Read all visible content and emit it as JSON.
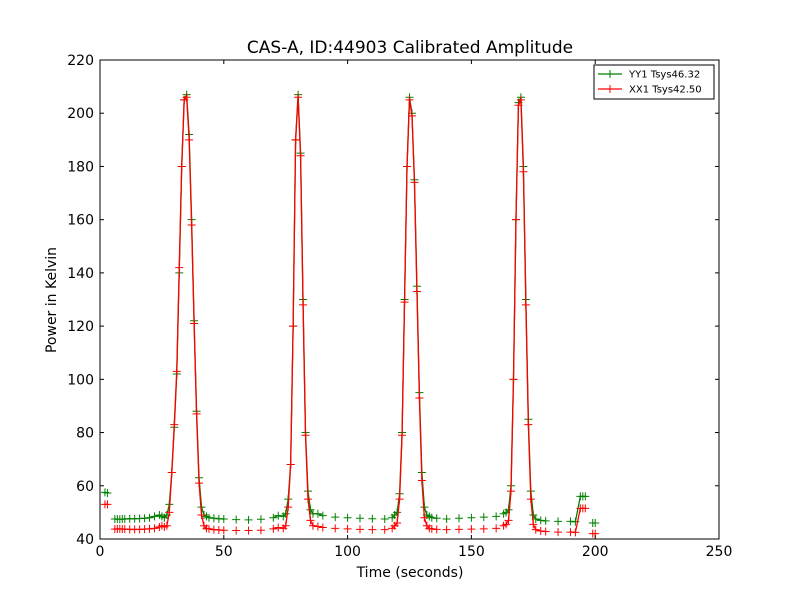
{
  "chart_data": {
    "type": "line",
    "title": "CAS-A, ID:44903 Calibrated Amplitude",
    "xlabel": "Time (seconds)",
    "ylabel": "Power in Kelvin",
    "xlim": [
      0,
      250
    ],
    "ylim": [
      40,
      220
    ],
    "x_ticks": [
      "0",
      "50",
      "100",
      "150",
      "200",
      "250"
    ],
    "y_ticks": [
      "40",
      "60",
      "80",
      "100",
      "120",
      "140",
      "160",
      "180",
      "200",
      "220"
    ],
    "grid": false,
    "legend_position": "top-right",
    "series": [
      {
        "name": "YY1 Tsys46.32",
        "color": "#008000",
        "marker": "plus",
        "points": [
          [
            2,
            57.5
          ],
          [
            3,
            57.3
          ],
          [
            6,
            47.5
          ],
          [
            7,
            47.5
          ],
          [
            8,
            47.4
          ],
          [
            9,
            47.5
          ],
          [
            10,
            47.5
          ],
          [
            12,
            47.6
          ],
          [
            14,
            47.6
          ],
          [
            16,
            47.7
          ],
          [
            18,
            47.8
          ],
          [
            20,
            48.0
          ],
          [
            22,
            48.5
          ],
          [
            24,
            49.0
          ],
          [
            25,
            48.5
          ],
          [
            26,
            48.0
          ],
          [
            27,
            49.0
          ],
          [
            28,
            53.0
          ],
          [
            29,
            65.0
          ],
          [
            30,
            82.0
          ],
          [
            31,
            102.0
          ],
          [
            32,
            140.0
          ],
          [
            33,
            180.0
          ],
          [
            34,
            205.0
          ],
          [
            35,
            207.0
          ],
          [
            36,
            192.0
          ],
          [
            37,
            160.0
          ],
          [
            38,
            122.0
          ],
          [
            39,
            88.0
          ],
          [
            40,
            63.0
          ],
          [
            41,
            52.0
          ],
          [
            42,
            49.0
          ],
          [
            43,
            48.5
          ],
          [
            44,
            48.0
          ],
          [
            46,
            47.8
          ],
          [
            48,
            47.6
          ],
          [
            50,
            47.5
          ],
          [
            55,
            47.3
          ],
          [
            60,
            47.2
          ],
          [
            65,
            47.4
          ],
          [
            70,
            48.0
          ],
          [
            72,
            48.8
          ],
          [
            74,
            48.5
          ],
          [
            75,
            49.5
          ],
          [
            76,
            55.0
          ],
          [
            77,
            68.0
          ],
          [
            78,
            120.0
          ],
          [
            79,
            190.0
          ],
          [
            80,
            207.0
          ],
          [
            81,
            185.0
          ],
          [
            82,
            130.0
          ],
          [
            83,
            80.0
          ],
          [
            84,
            58.0
          ],
          [
            85,
            51.0
          ],
          [
            86,
            49.5
          ],
          [
            88,
            49.5
          ],
          [
            90,
            48.8
          ],
          [
            95,
            48.2
          ],
          [
            100,
            48.0
          ],
          [
            105,
            47.8
          ],
          [
            110,
            47.6
          ],
          [
            115,
            47.5
          ],
          [
            118,
            48.0
          ],
          [
            119,
            49.0
          ],
          [
            120,
            50.0
          ],
          [
            121,
            57.0
          ],
          [
            122,
            80.0
          ],
          [
            123,
            130.0
          ],
          [
            124,
            180.0
          ],
          [
            125,
            206.0
          ],
          [
            126,
            200.0
          ],
          [
            127,
            175.0
          ],
          [
            128,
            135.0
          ],
          [
            129,
            95.0
          ],
          [
            130,
            65.0
          ],
          [
            131,
            52.0
          ],
          [
            132,
            49.0
          ],
          [
            133,
            48.5
          ],
          [
            134,
            48.0
          ],
          [
            136,
            47.8
          ],
          [
            140,
            47.5
          ],
          [
            145,
            47.8
          ],
          [
            150,
            48.0
          ],
          [
            155,
            48.2
          ],
          [
            160,
            48.5
          ],
          [
            163,
            49.5
          ],
          [
            164,
            50.0
          ],
          [
            165,
            51.0
          ],
          [
            166,
            60.0
          ],
          [
            167,
            100.0
          ],
          [
            168,
            160.0
          ],
          [
            169,
            204.0
          ],
          [
            170,
            206.0
          ],
          [
            171,
            180.0
          ],
          [
            172,
            130.0
          ],
          [
            173,
            85.0
          ],
          [
            174,
            58.0
          ],
          [
            175,
            49.0
          ],
          [
            176,
            47.5
          ],
          [
            178,
            47.0
          ],
          [
            180,
            46.8
          ],
          [
            185,
            46.6
          ],
          [
            190,
            46.6
          ],
          [
            192,
            46.5
          ],
          [
            194,
            56.0
          ],
          [
            195,
            56.0
          ],
          [
            196,
            56.0
          ],
          [
            199,
            46.0
          ],
          [
            200,
            46.0
          ]
        ]
      },
      {
        "name": "XX1 Tsys42.50",
        "color": "#ff0000",
        "marker": "plus",
        "points": [
          [
            2,
            53.0
          ],
          [
            3,
            53.0
          ],
          [
            6,
            43.7
          ],
          [
            7,
            43.8
          ],
          [
            8,
            43.8
          ],
          [
            9,
            43.7
          ],
          [
            10,
            43.7
          ],
          [
            12,
            43.6
          ],
          [
            14,
            43.6
          ],
          [
            16,
            43.6
          ],
          [
            18,
            43.7
          ],
          [
            20,
            43.8
          ],
          [
            22,
            44.0
          ],
          [
            24,
            44.5
          ],
          [
            25,
            45.0
          ],
          [
            26,
            44.5
          ],
          [
            27,
            45.0
          ],
          [
            28,
            50.0
          ],
          [
            29,
            65.0
          ],
          [
            30,
            83.0
          ],
          [
            31,
            103.0
          ],
          [
            32,
            142.0
          ],
          [
            33,
            180.0
          ],
          [
            34,
            205.0
          ],
          [
            35,
            206.0
          ],
          [
            36,
            190.0
          ],
          [
            37,
            158.0
          ],
          [
            38,
            121.0
          ],
          [
            39,
            87.0
          ],
          [
            40,
            61.0
          ],
          [
            41,
            49.0
          ],
          [
            42,
            45.0
          ],
          [
            43,
            44.0
          ],
          [
            44,
            43.8
          ],
          [
            46,
            43.5
          ],
          [
            48,
            43.4
          ],
          [
            50,
            43.3
          ],
          [
            55,
            43.2
          ],
          [
            60,
            43.2
          ],
          [
            65,
            43.3
          ],
          [
            70,
            43.8
          ],
          [
            72,
            44.3
          ],
          [
            74,
            44.0
          ],
          [
            75,
            45.0
          ],
          [
            76,
            52.0
          ],
          [
            77,
            68.0
          ],
          [
            78,
            120.0
          ],
          [
            79,
            190.0
          ],
          [
            80,
            206.0
          ],
          [
            81,
            184.0
          ],
          [
            82,
            128.0
          ],
          [
            83,
            79.0
          ],
          [
            84,
            55.0
          ],
          [
            85,
            47.0
          ],
          [
            86,
            45.0
          ],
          [
            88,
            44.7
          ],
          [
            90,
            44.3
          ],
          [
            95,
            44.0
          ],
          [
            100,
            43.8
          ],
          [
            105,
            43.6
          ],
          [
            110,
            43.5
          ],
          [
            115,
            43.5
          ],
          [
            118,
            44.0
          ],
          [
            119,
            45.0
          ],
          [
            120,
            46.0
          ],
          [
            121,
            55.0
          ],
          [
            122,
            79.0
          ],
          [
            123,
            129.0
          ],
          [
            124,
            180.0
          ],
          [
            125,
            205.0
          ],
          [
            126,
            199.0
          ],
          [
            127,
            174.0
          ],
          [
            128,
            133.0
          ],
          [
            129,
            93.0
          ],
          [
            130,
            62.0
          ],
          [
            131,
            48.0
          ],
          [
            132,
            45.0
          ],
          [
            133,
            44.0
          ],
          [
            134,
            43.8
          ],
          [
            136,
            43.6
          ],
          [
            140,
            43.5
          ],
          [
            145,
            43.6
          ],
          [
            150,
            43.7
          ],
          [
            155,
            43.8
          ],
          [
            160,
            44.0
          ],
          [
            163,
            45.0
          ],
          [
            164,
            45.5
          ],
          [
            165,
            47.0
          ],
          [
            166,
            58.0
          ],
          [
            167,
            100.0
          ],
          [
            168,
            160.0
          ],
          [
            169,
            203.0
          ],
          [
            170,
            205.0
          ],
          [
            171,
            178.0
          ],
          [
            172,
            128.0
          ],
          [
            173,
            83.0
          ],
          [
            174,
            55.0
          ],
          [
            175,
            45.5
          ],
          [
            176,
            43.5
          ],
          [
            178,
            43.0
          ],
          [
            180,
            42.8
          ],
          [
            185,
            42.6
          ],
          [
            190,
            42.6
          ],
          [
            192,
            42.5
          ],
          [
            194,
            51.5
          ],
          [
            195,
            51.5
          ],
          [
            196,
            51.5
          ],
          [
            199,
            42.0
          ],
          [
            200,
            42.0
          ]
        ]
      }
    ]
  }
}
